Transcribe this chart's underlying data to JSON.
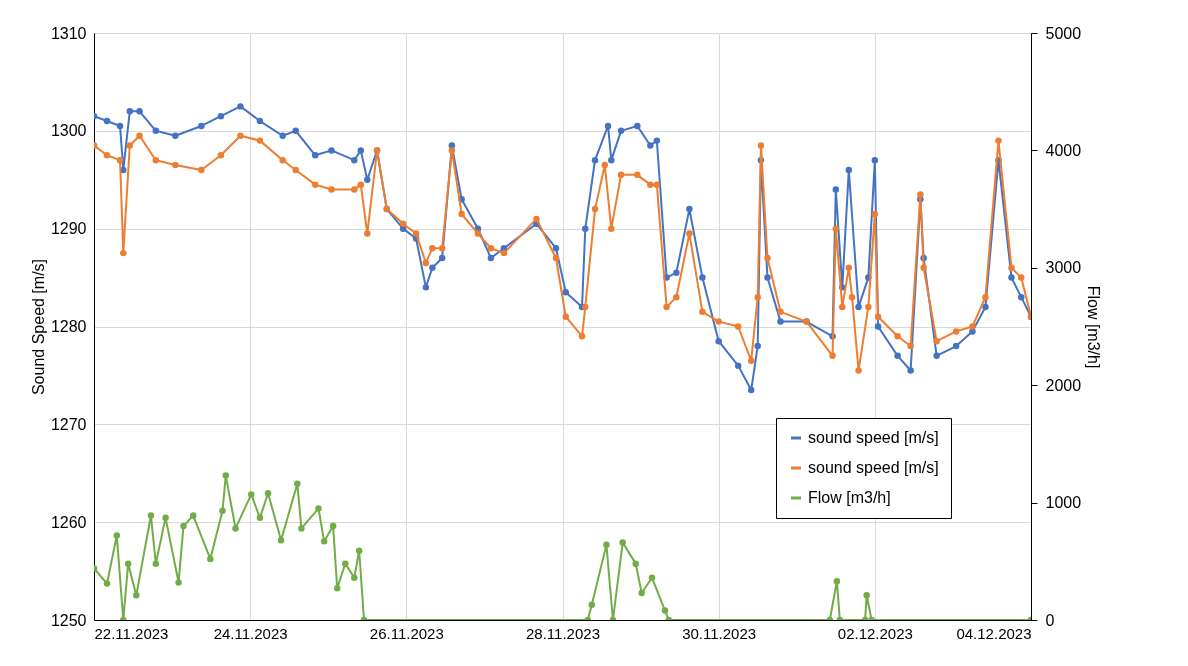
{
  "chart_data": {
    "type": "line",
    "ylabel": "Sound Speed [m/s]",
    "y2label": "Flow [m3/h]",
    "xlim": [
      "2023-11-22",
      "2023-12-04"
    ],
    "xticks": [
      {
        "value": "2023-11-22",
        "label": "22.11.2023"
      },
      {
        "value": "2023-11-24",
        "label": "24.11.2023"
      },
      {
        "value": "2023-11-26",
        "label": "26.11.2023"
      },
      {
        "value": "2023-11-28",
        "label": "28.11.2023"
      },
      {
        "value": "2023-11-30",
        "label": "30.11.2023"
      },
      {
        "value": "2023-12-02",
        "label": "02.12.2023"
      },
      {
        "value": "2023-12-04",
        "label": "04.12.2023"
      }
    ],
    "ylim": [
      1250,
      1310
    ],
    "yticks": [
      1250,
      1260,
      1270,
      1280,
      1290,
      1300,
      1310
    ],
    "y2lim": [
      0,
      5000
    ],
    "y2ticks": [
      0,
      1000,
      2000,
      3000,
      4000,
      5000
    ],
    "grid": true,
    "legend": "bottom right",
    "marker": "circle",
    "line_style": "solid",
    "series": [
      {
        "name": "sound speed [m/s]",
        "color": "#4472c4",
        "x": [
          "2023-11-22T00:00",
          "2023-11-22T04:00",
          "2023-11-22T08:00",
          "2023-11-22T09:00",
          "2023-11-22T11:00",
          "2023-11-22T14:00",
          "2023-11-22T19:00",
          "2023-11-23T01:00",
          "2023-11-23T09:00",
          "2023-11-23T15:00",
          "2023-11-23T21:00",
          "2023-11-24T03:00",
          "2023-11-24T10:00",
          "2023-11-24T14:00",
          "2023-11-24T20:00",
          "2023-11-25T01:00",
          "2023-11-25T08:00",
          "2023-11-25T10:00",
          "2023-11-25T12:00",
          "2023-11-25T15:00",
          "2023-11-25T18:00",
          "2023-11-25T23:00",
          "2023-11-26T03:00",
          "2023-11-26T06:00",
          "2023-11-26T08:00",
          "2023-11-26T11:00",
          "2023-11-26T14:00",
          "2023-11-26T17:00",
          "2023-11-26T22:00",
          "2023-11-27T02:00",
          "2023-11-27T06:00",
          "2023-11-27T16:00",
          "2023-11-27T22:00",
          "2023-11-28T01:00",
          "2023-11-28T06:00",
          "2023-11-28T07:00",
          "2023-11-28T10:00",
          "2023-11-28T14:00",
          "2023-11-28T15:00",
          "2023-11-28T18:00",
          "2023-11-28T23:00",
          "2023-11-29T03:00",
          "2023-11-29T05:00",
          "2023-11-29T08:00",
          "2023-11-29T11:00",
          "2023-11-29T15:00",
          "2023-11-29T19:00",
          "2023-11-30T00:00",
          "2023-11-30T06:00",
          "2023-11-30T10:00",
          "2023-11-30T12:00",
          "2023-11-30T13:00",
          "2023-11-30T15:00",
          "2023-11-30T19:00",
          "2023-12-01T03:00",
          "2023-12-01T11:00",
          "2023-12-01T12:00",
          "2023-12-01T14:00",
          "2023-12-01T16:00",
          "2023-12-01T19:00",
          "2023-12-01T22:00",
          "2023-12-02T00:00",
          "2023-12-02T01:00",
          "2023-12-02T07:00",
          "2023-12-02T11:00",
          "2023-12-02T14:00",
          "2023-12-02T15:00",
          "2023-12-02T19:00",
          "2023-12-03T01:00",
          "2023-12-03T06:00",
          "2023-12-03T10:00",
          "2023-12-03T14:00",
          "2023-12-03T18:00",
          "2023-12-03T21:00",
          "2023-12-04T00:00"
        ],
        "values": [
          1301.5,
          1301,
          1300.5,
          1296,
          1302,
          1302,
          1300,
          1299.5,
          1300.5,
          1301.5,
          1302.5,
          1301,
          1299.5,
          1300,
          1297.5,
          1298,
          1297,
          1298,
          1295,
          1298,
          1292,
          1290,
          1289,
          1284,
          1286,
          1287,
          1298.5,
          1293,
          1290,
          1287,
          1288,
          1290.5,
          1288,
          1283.5,
          1282,
          1290,
          1297,
          1300.5,
          1297,
          1300,
          1300.5,
          1298.5,
          1299,
          1285,
          1285.5,
          1292,
          1285,
          1278.5,
          1276,
          1273.5,
          1278,
          1297,
          1285,
          1280.5,
          1280.5,
          1279,
          1294,
          1284,
          1296,
          1282,
          1285,
          1297,
          1280,
          1277,
          1275.5,
          1293,
          1287,
          1277,
          1278,
          1279.5,
          1282,
          1297,
          1285,
          1283,
          1281
        ]
      },
      {
        "name": "sound speed [m/s]",
        "color": "#ed7d31",
        "x": [
          "2023-11-22T00:00",
          "2023-11-22T04:00",
          "2023-11-22T08:00",
          "2023-11-22T09:00",
          "2023-11-22T11:00",
          "2023-11-22T14:00",
          "2023-11-22T19:00",
          "2023-11-23T01:00",
          "2023-11-23T09:00",
          "2023-11-23T15:00",
          "2023-11-23T21:00",
          "2023-11-24T03:00",
          "2023-11-24T10:00",
          "2023-11-24T14:00",
          "2023-11-24T20:00",
          "2023-11-25T01:00",
          "2023-11-25T08:00",
          "2023-11-25T10:00",
          "2023-11-25T12:00",
          "2023-11-25T15:00",
          "2023-11-25T18:00",
          "2023-11-25T23:00",
          "2023-11-26T03:00",
          "2023-11-26T06:00",
          "2023-11-26T08:00",
          "2023-11-26T11:00",
          "2023-11-26T14:00",
          "2023-11-26T17:00",
          "2023-11-26T22:00",
          "2023-11-27T02:00",
          "2023-11-27T06:00",
          "2023-11-27T16:00",
          "2023-11-27T22:00",
          "2023-11-28T01:00",
          "2023-11-28T06:00",
          "2023-11-28T07:00",
          "2023-11-28T10:00",
          "2023-11-28T13:00",
          "2023-11-28T15:00",
          "2023-11-28T18:00",
          "2023-11-28T23:00",
          "2023-11-29T03:00",
          "2023-11-29T05:00",
          "2023-11-29T08:00",
          "2023-11-29T11:00",
          "2023-11-29T15:00",
          "2023-11-29T19:00",
          "2023-11-30T00:00",
          "2023-11-30T06:00",
          "2023-11-30T10:00",
          "2023-11-30T12:00",
          "2023-11-30T13:00",
          "2023-11-30T15:00",
          "2023-11-30T19:00",
          "2023-12-01T03:00",
          "2023-12-01T11:00",
          "2023-12-01T12:00",
          "2023-12-01T14:00",
          "2023-12-01T16:00",
          "2023-12-01T17:00",
          "2023-12-01T19:00",
          "2023-12-01T22:00",
          "2023-12-02T00:00",
          "2023-12-02T01:00",
          "2023-12-02T07:00",
          "2023-12-02T11:00",
          "2023-12-02T14:00",
          "2023-12-02T15:00",
          "2023-12-02T19:00",
          "2023-12-03T01:00",
          "2023-12-03T06:00",
          "2023-12-03T10:00",
          "2023-12-03T14:00",
          "2023-12-03T18:00",
          "2023-12-03T21:00",
          "2023-12-04T00:00"
        ],
        "values": [
          1298.5,
          1297.5,
          1297,
          1287.5,
          1298.5,
          1299.5,
          1297,
          1296.5,
          1296,
          1297.5,
          1299.5,
          1299,
          1297,
          1296,
          1294.5,
          1294,
          1294,
          1294.5,
          1289.5,
          1298,
          1292,
          1290.5,
          1289.5,
          1286.5,
          1288,
          1288,
          1298,
          1291.5,
          1289.5,
          1288,
          1287.5,
          1291,
          1287,
          1281,
          1279,
          1282,
          1292,
          1296.5,
          1290,
          1295.5,
          1295.5,
          1294.5,
          1294.5,
          1282,
          1283,
          1289.5,
          1281.5,
          1280.5,
          1280,
          1276.5,
          1283,
          1298.5,
          1287,
          1281.5,
          1280.5,
          1277,
          1290,
          1282,
          1286,
          1283,
          1275.5,
          1282,
          1291.5,
          1281,
          1279,
          1278,
          1293.5,
          1286,
          1278.5,
          1279.5,
          1280,
          1283,
          1299,
          1286,
          1285,
          1281
        ]
      },
      {
        "name": "Flow [m3/h]",
        "color": "#70ad47",
        "axis": "y2",
        "x": [
          "2023-11-22T00:00",
          "2023-11-22T04:00",
          "2023-11-22T07:00",
          "2023-11-22T09:00",
          "2023-11-22T10:30",
          "2023-11-22T13:00",
          "2023-11-22T17:30",
          "2023-11-22T19:00",
          "2023-11-22T22:00",
          "2023-11-23T02:00",
          "2023-11-23T03:30",
          "2023-11-23T06:30",
          "2023-11-23T11:45",
          "2023-11-23T15:30",
          "2023-11-23T16:30",
          "2023-11-23T19:30",
          "2023-11-24T00:20",
          "2023-11-24T03:00",
          "2023-11-24T05:30",
          "2023-11-24T09:30",
          "2023-11-24T14:30",
          "2023-11-24T15:45",
          "2023-11-24T21:00",
          "2023-11-24T22:45",
          "2023-11-25T01:30",
          "2023-11-25T02:45",
          "2023-11-25T05:15",
          "2023-11-25T08:00",
          "2023-11-25T09:30",
          "2023-11-25T11:00",
          "2023-11-28T07:45",
          "2023-11-28T09:00",
          "2023-11-28T13:30",
          "2023-11-28T15:30",
          "2023-11-28T18:30",
          "2023-11-28T22:30",
          "2023-11-29T00:20",
          "2023-11-29T03:30",
          "2023-11-29T07:30",
          "2023-11-29T08:40",
          "2023-12-01T10:10",
          "2023-12-01T12:20",
          "2023-12-01T13:15",
          "2023-12-01T21:00",
          "2023-12-01T21:30",
          "2023-12-01T23:00",
          "2023-12-04T00:00"
        ],
        "values": [
          440,
          310,
          720,
          0,
          480,
          210,
          890,
          480,
          870,
          320,
          800,
          890,
          520,
          930,
          1230,
          780,
          1070,
          870,
          1080,
          680,
          1160,
          780,
          950,
          670,
          800,
          270,
          480,
          360,
          590,
          0,
          0,
          130,
          640,
          0,
          660,
          480,
          230,
          360,
          80,
          0,
          0,
          330,
          0,
          0,
          210,
          0,
          0
        ]
      }
    ]
  }
}
